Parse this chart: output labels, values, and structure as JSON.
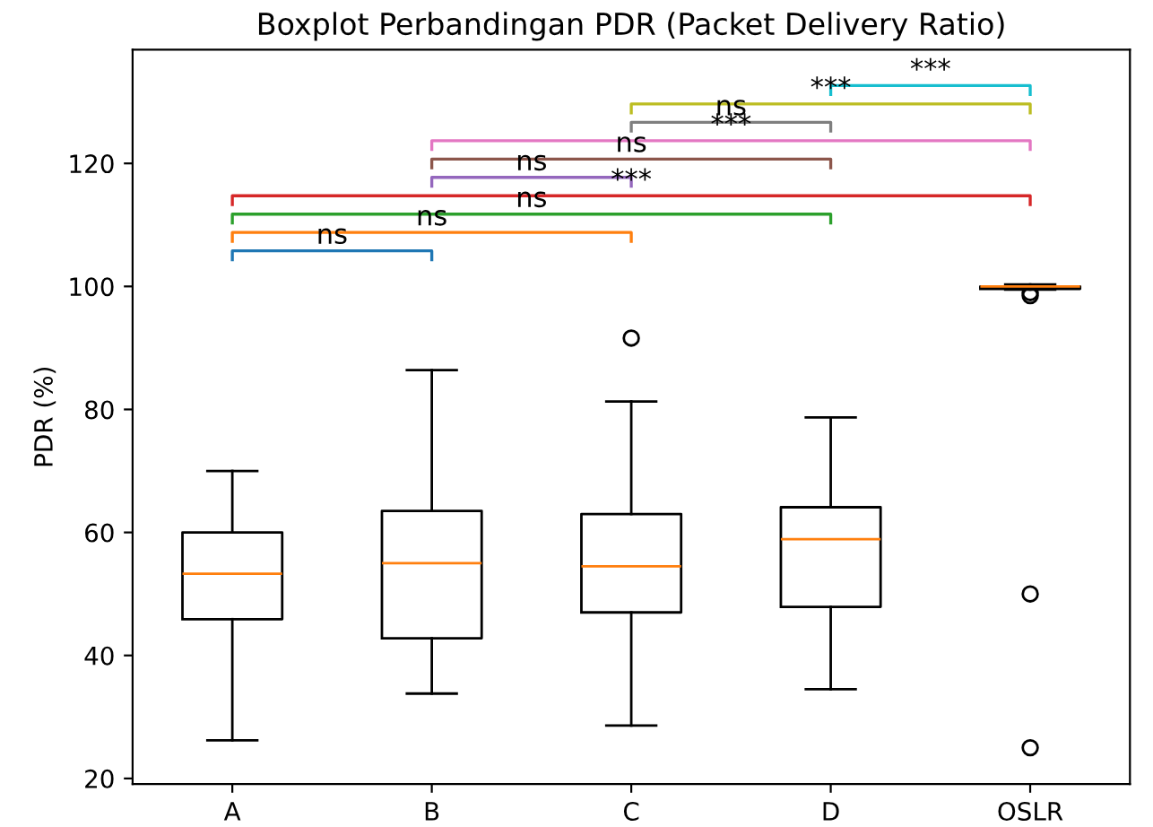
{
  "chart_data": {
    "type": "box",
    "title": "Boxplot Perbandingan PDR (Packet Delivery Ratio)",
    "ylabel": "PDR (%)",
    "categories": [
      "A",
      "B",
      "C",
      "D",
      "OSLR"
    ],
    "boxes": [
      {
        "low": 26.2,
        "q1": 45.9,
        "median": 53.3,
        "q3": 60.0,
        "high": 70.0
      },
      {
        "low": 33.8,
        "q1": 42.8,
        "median": 55.0,
        "q3": 63.5,
        "high": 86.4
      },
      {
        "low": 28.6,
        "q1": 47.0,
        "median": 54.5,
        "q3": 63.0,
        "high": 81.3,
        "outliers": [
          91.6
        ]
      },
      {
        "low": 34.5,
        "q1": 47.9,
        "median": 58.9,
        "q3": 64.1,
        "high": 78.7
      },
      {
        "low": 99.5,
        "q1": 99.6,
        "median": 100.0,
        "q3": 100.0,
        "high": 100.3,
        "outliers": [
          99.0,
          98.5,
          50.0,
          25.0
        ]
      }
    ],
    "ylim": [
      19.1,
      138.5
    ],
    "yticks": [
      20,
      40,
      60,
      80,
      100,
      120
    ],
    "annotations": [
      "ns",
      "ns",
      "ns",
      "***",
      "ns",
      "ns",
      "***",
      "ns",
      "***",
      "***"
    ],
    "grid": false
  }
}
